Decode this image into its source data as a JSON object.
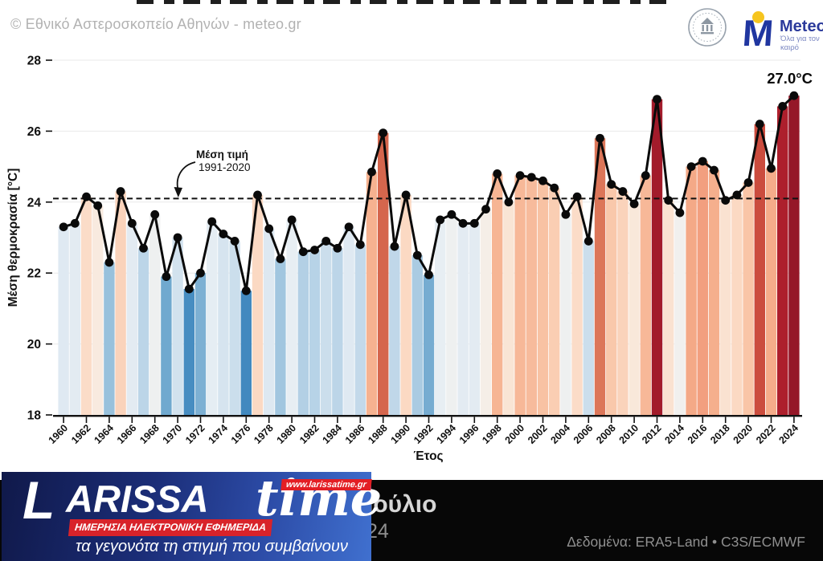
{
  "header": {
    "copyright": "© Εθνικό Αστεροσκοπείο Αθηνών - meteo.gr",
    "meteo": {
      "wordmark": "Meteo",
      "m_glyph": "M",
      "tagline": "Όλα για τον καιρό"
    }
  },
  "chart_data": {
    "type": "bar",
    "title": "",
    "xlabel": "Έτος",
    "ylabel": "Μέση θερμοκρασία [°C]",
    "ylim": [
      18,
      28
    ],
    "yticks": [
      18,
      20,
      22,
      24,
      26,
      28
    ],
    "grid": "horizontal-faint",
    "mean_line": {
      "value": 24.1,
      "style": "dashed",
      "label_bold": "Μέση τιμή",
      "label": "1991-2020"
    },
    "last_point_label": "27.0°C",
    "years": [
      1960,
      1961,
      1962,
      1963,
      1964,
      1965,
      1966,
      1967,
      1968,
      1969,
      1970,
      1971,
      1972,
      1973,
      1974,
      1975,
      1976,
      1977,
      1978,
      1979,
      1980,
      1981,
      1982,
      1983,
      1984,
      1985,
      1986,
      1987,
      1988,
      1989,
      1990,
      1991,
      1992,
      1993,
      1994,
      1995,
      1996,
      1997,
      1998,
      1999,
      2000,
      2001,
      2002,
      2003,
      2004,
      2005,
      2006,
      2007,
      2008,
      2009,
      2010,
      2011,
      2012,
      2013,
      2014,
      2015,
      2016,
      2017,
      2018,
      2019,
      2020,
      2021,
      2022,
      2023,
      2024
    ],
    "values": [
      23.3,
      23.4,
      24.15,
      23.9,
      22.3,
      24.3,
      23.4,
      22.7,
      23.65,
      21.9,
      23.0,
      21.55,
      22.0,
      23.45,
      23.1,
      22.9,
      21.5,
      24.2,
      23.25,
      22.4,
      23.5,
      22.6,
      22.65,
      22.9,
      22.7,
      23.3,
      22.8,
      24.85,
      25.95,
      22.75,
      24.2,
      22.5,
      21.95,
      23.5,
      23.65,
      23.4,
      23.4,
      23.8,
      24.8,
      24.0,
      24.75,
      24.7,
      24.6,
      24.4,
      23.65,
      24.15,
      22.9,
      25.8,
      24.5,
      24.3,
      23.95,
      24.75,
      26.9,
      24.05,
      23.7,
      25.0,
      25.15,
      24.9,
      24.05,
      24.2,
      24.55,
      26.2,
      24.95,
      26.7,
      27.0
    ],
    "series_style": {
      "bars": "climate-stripes from 18°C baseline",
      "line": "black with dots"
    },
    "color_scale": [
      [
        21.4,
        "#3880ba"
      ],
      [
        21.7,
        "#569ac8"
      ],
      [
        22.0,
        "#7db0d3"
      ],
      [
        22.35,
        "#9cc4de"
      ],
      [
        22.7,
        "#bcd5e8"
      ],
      [
        23.0,
        "#d2e2ee"
      ],
      [
        23.3,
        "#dfe9f2"
      ],
      [
        23.55,
        "#e9eff3"
      ],
      [
        23.75,
        "#f4f0ec"
      ],
      [
        23.95,
        "#f9e8da"
      ],
      [
        24.2,
        "#fbd9c3"
      ],
      [
        24.5,
        "#f9c8ab"
      ],
      [
        24.85,
        "#f6b290"
      ],
      [
        25.2,
        "#f19c7c"
      ],
      [
        25.5,
        "#e98a68"
      ],
      [
        25.8,
        "#dc7659"
      ],
      [
        26.0,
        "#d26049"
      ],
      [
        26.2,
        "#cb4c3e"
      ],
      [
        26.5,
        "#bb2a31"
      ],
      [
        26.7,
        "#ad1f2c"
      ],
      [
        26.9,
        "#a21b2b"
      ],
      [
        27.05,
        "#8e1527"
      ]
    ]
  },
  "footer": {
    "headline_visible": "Ιούλιο",
    "subline_visible": "24",
    "source": "Δεδομένα: ERA5-Land • C3S/ECMWF"
  },
  "watermark": {
    "l_glyph": "L",
    "name": "ARISSA",
    "time": "time",
    "url": "www.larissatime.gr",
    "strip": "ΗΜΕΡΗΣΙΑ ΗΛΕΚΤΡΟΝΙΚΗ ΕΦΗΜΕΡΙΔΑ",
    "slogan": "τα γεγονότα τη στιγμή που συμβαίνουν"
  }
}
